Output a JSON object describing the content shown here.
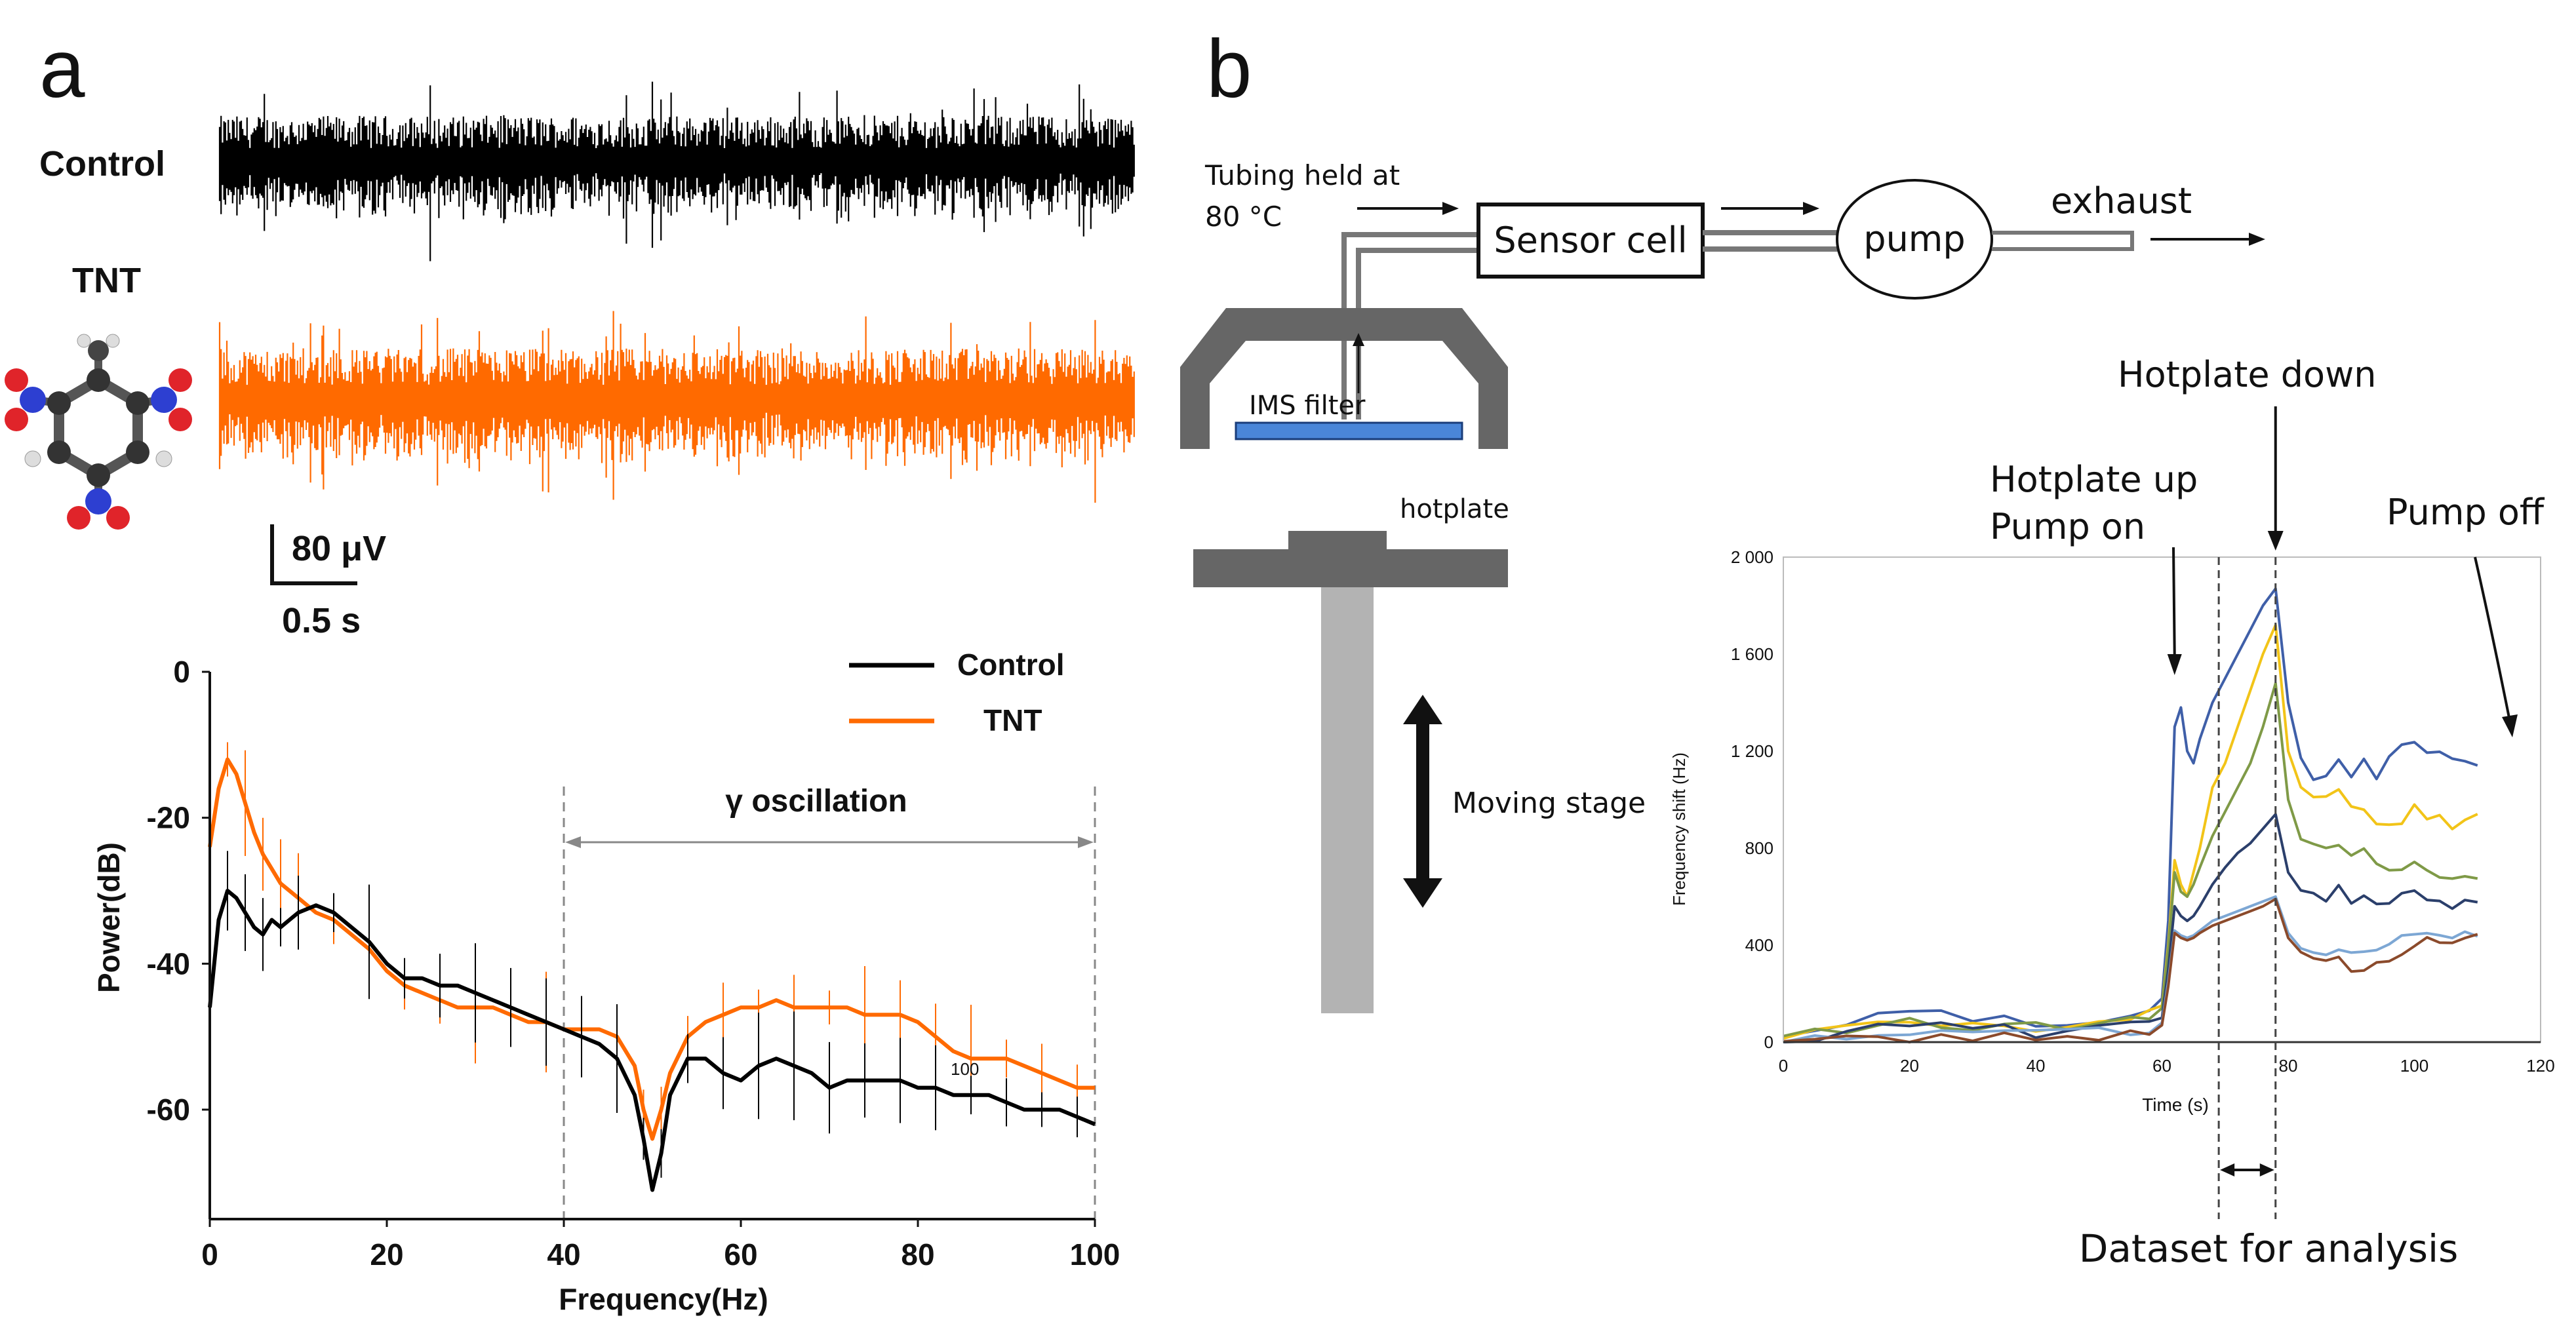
{
  "panel_a": {
    "letter": "a",
    "traces": {
      "control_label": "Control",
      "tnt_label": "TNT",
      "control_color": "#000000",
      "tnt_color": "#ff6a00"
    },
    "scale_bar": {
      "amplitude": "80 μV",
      "time": "0.5 s"
    },
    "molecule_icon": "tnt-molecule-icon"
  },
  "panel_b": {
    "letter": "b",
    "diagram": {
      "tubing_label_line1": "Tubing held at",
      "tubing_label_line2": "80 °C",
      "sensor_cell": "Sensor cell",
      "pump": "pump",
      "exhaust": "exhaust",
      "ims_filter": "IMS filter",
      "hotplate": "hotplate",
      "moving_stage": "Moving stage"
    },
    "annotations": {
      "hotplate_down": "Hotplate down",
      "hotplate_up_line1": "Hotplate up",
      "hotplate_up_line2": "Pump on",
      "pump_off": "Pump off",
      "dataset": "Dataset for analysis"
    }
  },
  "chart_data": [
    {
      "type": "line",
      "title": "",
      "xlabel": "Frequency(Hz)",
      "ylabel": "Power(dB)",
      "xlim": [
        0,
        100
      ],
      "ylim": [
        -75,
        0
      ],
      "xticks": [
        0,
        20,
        40,
        60,
        80,
        100
      ],
      "yticks": [
        0,
        -20,
        -40,
        -60
      ],
      "legend_position": "top-right",
      "annotation": "γ oscillation",
      "annotation_range": [
        40,
        100
      ],
      "inline_label": "100",
      "series": [
        {
          "name": "Control",
          "color": "#000000",
          "x": [
            0,
            1,
            2,
            3,
            4,
            5,
            6,
            7,
            8,
            9,
            10,
            12,
            14,
            16,
            18,
            20,
            22,
            24,
            26,
            28,
            30,
            32,
            34,
            36,
            38,
            40,
            42,
            44,
            46,
            48,
            49,
            50,
            51,
            52,
            54,
            56,
            58,
            60,
            62,
            64,
            66,
            68,
            70,
            72,
            74,
            76,
            78,
            80,
            82,
            84,
            86,
            88,
            90,
            92,
            94,
            96,
            98,
            100
          ],
          "y": [
            -46,
            -34,
            -30,
            -31,
            -33,
            -35,
            -36,
            -34,
            -35,
            -34,
            -33,
            -32,
            -33,
            -35,
            -37,
            -40,
            -42,
            -42,
            -43,
            -43,
            -44,
            -45,
            -46,
            -47,
            -48,
            -49,
            -50,
            -51,
            -53,
            -58,
            -64,
            -71,
            -66,
            -58,
            -53,
            -53,
            -55,
            -56,
            -54,
            -53,
            -54,
            -55,
            -57,
            -56,
            -56,
            -56,
            -56,
            -57,
            -57,
            -58,
            -58,
            -58,
            -59,
            -60,
            -60,
            -60,
            -61,
            -62
          ]
        },
        {
          "name": "TNT",
          "color": "#ff6a00",
          "x": [
            0,
            1,
            2,
            3,
            4,
            5,
            6,
            7,
            8,
            9,
            10,
            12,
            14,
            16,
            18,
            20,
            22,
            24,
            26,
            28,
            30,
            32,
            34,
            36,
            38,
            40,
            42,
            44,
            46,
            48,
            49,
            50,
            51,
            52,
            54,
            56,
            58,
            60,
            62,
            64,
            66,
            68,
            70,
            72,
            74,
            76,
            78,
            80,
            82,
            84,
            86,
            88,
            90,
            92,
            94,
            96,
            98,
            100
          ],
          "y": [
            -24,
            -16,
            -12,
            -14,
            -18,
            -22,
            -25,
            -27,
            -29,
            -30,
            -31,
            -33,
            -34,
            -36,
            -38,
            -41,
            -43,
            -44,
            -45,
            -46,
            -46,
            -46,
            -47,
            -48,
            -48,
            -49,
            -49,
            -49,
            -50,
            -54,
            -60,
            -64,
            -60,
            -55,
            -50,
            -48,
            -47,
            -46,
            -46,
            -45,
            -46,
            -46,
            -46,
            -46,
            -47,
            -47,
            -47,
            -48,
            -50,
            -52,
            -53,
            -53,
            -53,
            -54,
            -55,
            -56,
            -57,
            -57
          ]
        }
      ]
    },
    {
      "type": "line",
      "title": "",
      "xlabel": "Time (s)",
      "ylabel": "Frequency shift (Hz)",
      "xlim": [
        0,
        120
      ],
      "ylim": [
        0,
        2000
      ],
      "xticks": [
        0,
        20,
        40,
        60,
        80,
        100,
        120
      ],
      "yticks": [
        0,
        400,
        800,
        1200,
        1600,
        2000
      ],
      "ytick_labels": [
        "0",
        "400",
        "800",
        "1 200",
        "1 600",
        "2 000"
      ],
      "vertical_markers": [
        69,
        78
      ],
      "series": [
        {
          "color": "#3f5fa8",
          "x": [
            0,
            5,
            10,
            15,
            20,
            25,
            30,
            35,
            40,
            45,
            50,
            55,
            58,
            60,
            61,
            62,
            63,
            64,
            65,
            66,
            68,
            70,
            72,
            74,
            76,
            78,
            80,
            82,
            84,
            86,
            88,
            90,
            92,
            94,
            96,
            98,
            100,
            102,
            104,
            106,
            108,
            110
          ],
          "y": [
            20,
            60,
            90,
            110,
            120,
            140,
            100,
            120,
            80,
            70,
            90,
            130,
            140,
            180,
            500,
            1300,
            1380,
            1200,
            1150,
            1250,
            1400,
            1500,
            1600,
            1700,
            1800,
            1870,
            1400,
            1150,
            1100,
            1120,
            1180,
            1100,
            1160,
            1090,
            1200,
            1210,
            1250,
            1180,
            1200,
            1160,
            1140,
            1150
          ]
        },
        {
          "color": "#f2c418",
          "x": [
            0,
            5,
            10,
            15,
            20,
            25,
            30,
            35,
            40,
            45,
            50,
            55,
            58,
            60,
            61,
            62,
            63,
            64,
            65,
            66,
            68,
            70,
            72,
            74,
            76,
            78,
            80,
            82,
            84,
            86,
            88,
            90,
            92,
            94,
            96,
            98,
            100,
            102,
            104,
            106,
            108,
            110
          ],
          "y": [
            10,
            30,
            50,
            70,
            60,
            80,
            70,
            80,
            60,
            70,
            80,
            100,
            110,
            150,
            400,
            750,
            650,
            600,
            700,
            800,
            1050,
            1150,
            1300,
            1450,
            1600,
            1720,
            1200,
            1050,
            1000,
            1000,
            1050,
            960,
            980,
            920,
            900,
            920,
            960,
            930,
            920,
            900,
            910,
            920
          ]
        },
        {
          "color": "#7f9a47",
          "x": [
            0,
            5,
            10,
            15,
            20,
            25,
            30,
            35,
            40,
            45,
            50,
            55,
            58,
            60,
            61,
            62,
            63,
            64,
            65,
            66,
            68,
            70,
            72,
            74,
            76,
            78,
            80,
            82,
            84,
            86,
            88,
            90,
            92,
            94,
            96,
            98,
            100,
            102,
            104,
            106,
            108,
            110
          ],
          "y": [
            10,
            40,
            60,
            70,
            80,
            80,
            70,
            90,
            60,
            60,
            70,
            90,
            100,
            140,
            380,
            700,
            620,
            600,
            650,
            720,
            850,
            950,
            1050,
            1150,
            1300,
            1480,
            1000,
            850,
            820,
            800,
            790,
            760,
            780,
            720,
            700,
            720,
            760,
            720,
            700,
            690,
            680,
            690
          ]
        },
        {
          "color": "#2b3f6b",
          "x": [
            0,
            5,
            10,
            15,
            20,
            25,
            30,
            35,
            40,
            45,
            50,
            55,
            58,
            60,
            61,
            62,
            63,
            64,
            65,
            66,
            68,
            70,
            72,
            74,
            76,
            78,
            80,
            82,
            84,
            86,
            88,
            90,
            92,
            94,
            96,
            98,
            100,
            102,
            104,
            106,
            108,
            110
          ],
          "y": [
            0,
            20,
            40,
            60,
            50,
            60,
            50,
            60,
            40,
            50,
            60,
            70,
            80,
            100,
            300,
            560,
            520,
            500,
            520,
            560,
            650,
            720,
            780,
            820,
            880,
            940,
            700,
            620,
            610,
            600,
            640,
            570,
            600,
            560,
            580,
            600,
            620,
            580,
            570,
            560,
            580,
            590
          ]
        },
        {
          "color": "#7da7d4",
          "x": [
            0,
            5,
            10,
            15,
            20,
            25,
            30,
            35,
            40,
            45,
            50,
            55,
            58,
            60,
            61,
            62,
            63,
            64,
            65,
            66,
            68,
            70,
            72,
            74,
            76,
            78,
            80,
            82,
            84,
            86,
            88,
            90,
            92,
            94,
            96,
            98,
            100,
            102,
            104,
            106,
            108,
            110
          ],
          "y": [
            0,
            20,
            30,
            40,
            30,
            40,
            30,
            40,
            30,
            40,
            40,
            50,
            60,
            80,
            250,
            460,
            440,
            430,
            440,
            460,
            500,
            520,
            540,
            560,
            580,
            600,
            450,
            380,
            380,
            370,
            390,
            360,
            380,
            370,
            390,
            420,
            440,
            430,
            420,
            430,
            440,
            440
          ]
        },
        {
          "color": "#8b4a2b",
          "x": [
            0,
            5,
            10,
            15,
            20,
            25,
            30,
            35,
            40,
            45,
            50,
            55,
            58,
            60,
            61,
            62,
            63,
            64,
            65,
            66,
            68,
            70,
            72,
            74,
            76,
            78,
            80,
            82,
            84,
            86,
            88,
            90,
            92,
            94,
            96,
            98,
            100,
            102,
            104,
            106,
            108,
            110
          ],
          "y": [
            0,
            10,
            20,
            30,
            20,
            30,
            20,
            30,
            20,
            30,
            30,
            40,
            50,
            70,
            230,
            450,
            430,
            420,
            430,
            450,
            480,
            500,
            520,
            540,
            560,
            590,
            430,
            360,
            350,
            340,
            330,
            300,
            310,
            320,
            350,
            380,
            410,
            420,
            420,
            430,
            420,
            430
          ]
        }
      ]
    }
  ]
}
